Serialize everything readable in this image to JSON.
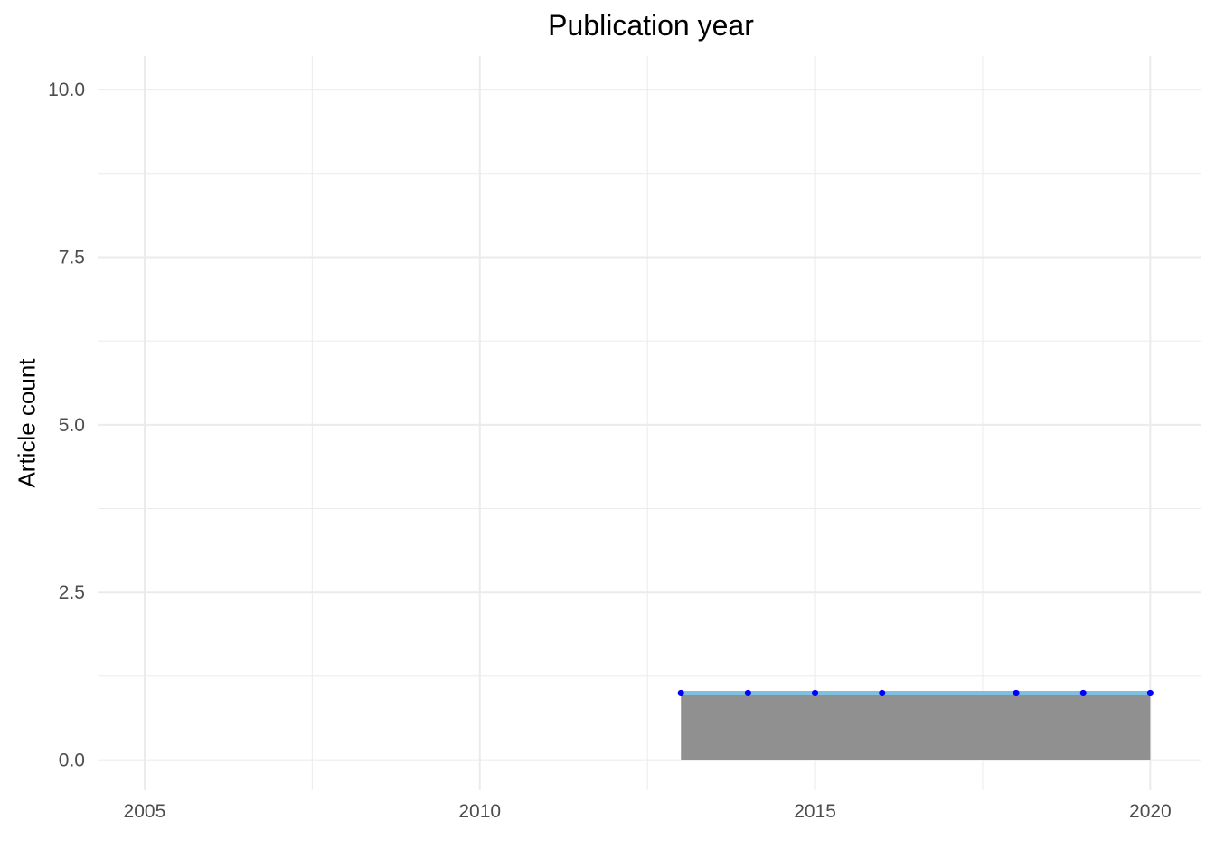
{
  "chart_data": {
    "type": "area",
    "title": "Publication year",
    "xlabel": "",
    "ylabel": "Article count",
    "xlim": [
      2004.3,
      2020.75
    ],
    "ylim": [
      -0.45,
      10.5
    ],
    "x_ticks": [
      2005,
      2010,
      2015,
      2020
    ],
    "x_tick_labels": [
      "2005",
      "2010",
      "2015",
      "2020"
    ],
    "y_ticks": [
      0,
      2.5,
      5,
      7.5,
      10
    ],
    "y_tick_labels": [
      "0.0",
      "2.5",
      "5.0",
      "7.5",
      "10.0"
    ],
    "grid": true,
    "legend": "none",
    "area": {
      "x": [
        2013,
        2020
      ],
      "values": [
        1,
        1
      ]
    },
    "series": [
      {
        "x": [
          2013,
          2014,
          2015,
          2016,
          2018,
          2019,
          2020
        ],
        "values": [
          1,
          1,
          1,
          1,
          1,
          1,
          1
        ]
      }
    ]
  },
  "colors": {
    "area_fill": "#909090",
    "line": "#7ec0e0",
    "points": "#0000ff",
    "grid": "#ebebeb",
    "tick_label": "#4d4d4d"
  }
}
